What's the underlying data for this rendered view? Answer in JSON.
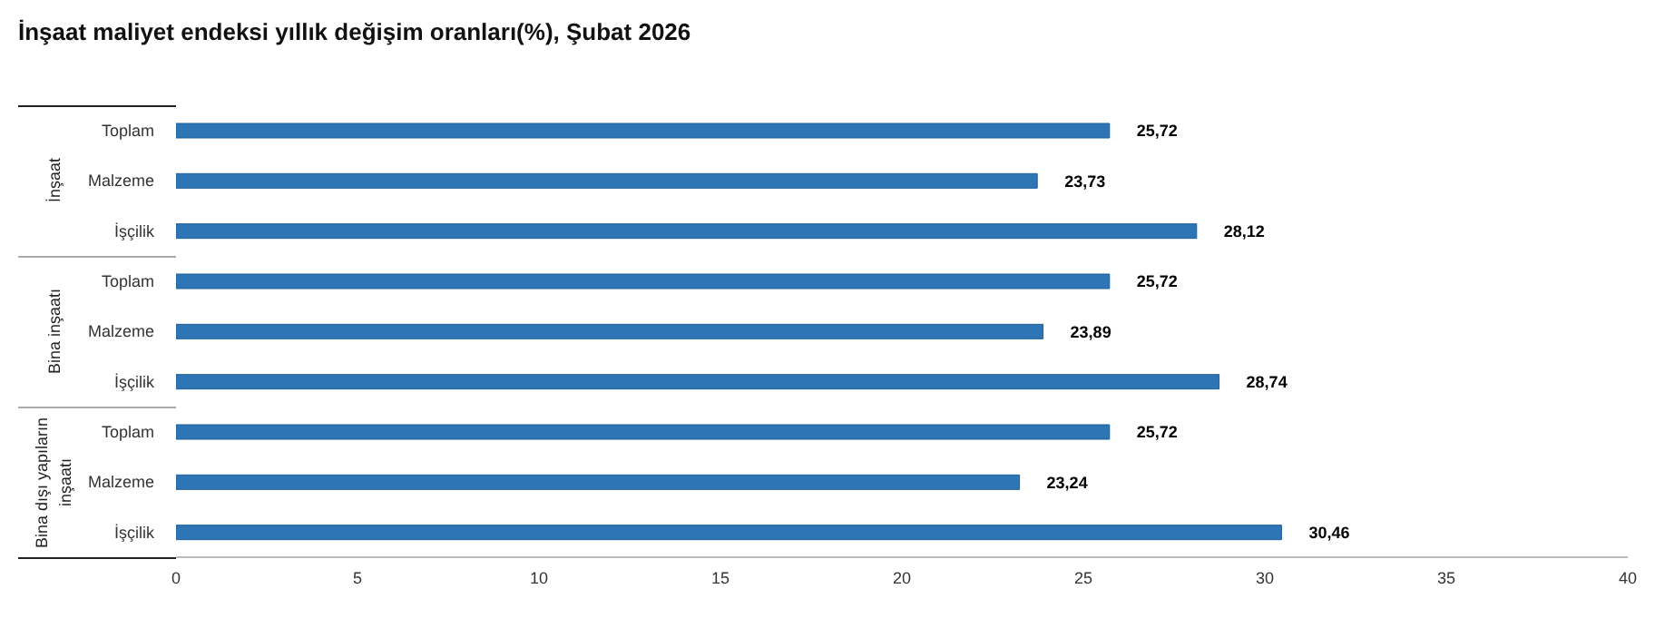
{
  "chart_data": {
    "type": "bar",
    "orientation": "horizontal",
    "title": "İnşaat maliyet endeksi yıllık değişim oranları(%), Şubat 2026",
    "categories": [
      "Toplam",
      "Malzeme",
      "İşçilik",
      "Toplam",
      "Malzeme",
      "İşçilik",
      "Toplam",
      "Malzeme",
      "İşçilik"
    ],
    "values": [
      25.72,
      23.73,
      28.12,
      25.72,
      23.89,
      28.74,
      25.72,
      23.24,
      30.46
    ],
    "value_labels": [
      "25,72",
      "23,73",
      "28,12",
      "25,72",
      "23,89",
      "28,74",
      "25,72",
      "23,24",
      "30,46"
    ],
    "color": "#2e75b6",
    "xlim": [
      0,
      40
    ],
    "xticks": [
      0,
      5,
      10,
      15,
      20,
      25,
      30,
      35,
      40
    ],
    "annotations": [
      "İnşaat",
      "Bina inşaatı",
      "Bina dışı yapıların inşaatı"
    ],
    "grid": false
  }
}
